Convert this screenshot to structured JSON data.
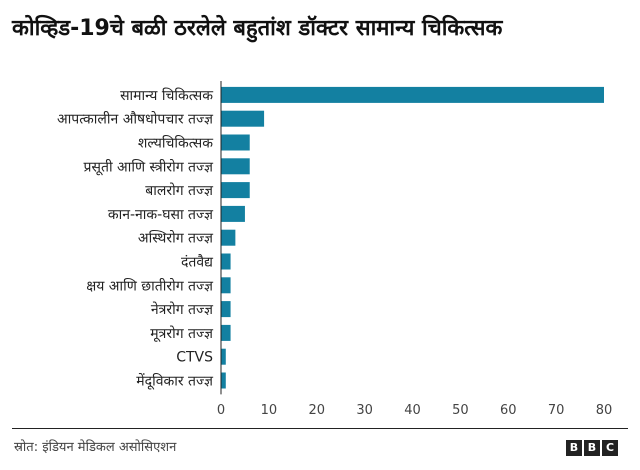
{
  "title": "कोव्हिड-19चे बळी ठरलेले बहुतांश डॉक्टर सामान्य चिकित्सक",
  "source": "स्रोत: इंडियन मेडिकल असोसिएशन",
  "logo": "BBC",
  "colors": {
    "bar": "#1380A1",
    "axis": "#222222",
    "text": "#222222"
  },
  "chart_data": {
    "type": "bar",
    "orientation": "horizontal",
    "categories": [
      "सामान्य चिकित्सक",
      "आपत्कालीन औषधोपचार तज्ज्ञ",
      "शल्यचिकित्सक",
      "प्रसूती आणि स्त्रीरोग तज्ज्ञ",
      "बालरोग तज्ज्ञ",
      "कान-नाक-घसा तज्ज्ञ",
      "अस्थिरोग तज्ज्ञ",
      "दंतवैद्य",
      "क्षय आणि छातीरोग तज्ज्ञ",
      "नेत्ररोग तज्ज्ञ",
      "मूत्ररोग तज्ज्ञ",
      "CTVS",
      "मेंदूविकार तज्ज्ञ"
    ],
    "values": [
      80,
      9,
      6,
      6,
      6,
      5,
      3,
      2,
      2,
      2,
      2,
      1,
      1
    ],
    "xlim": [
      0,
      80
    ],
    "xticks": [
      0,
      10,
      20,
      30,
      40,
      50,
      60,
      70,
      80
    ],
    "grid": false,
    "title": "कोव्हिड-19चे बळी ठरलेले बहुतांश डॉक्टर सामान्य चिकित्सक",
    "xlabel": "",
    "ylabel": ""
  }
}
